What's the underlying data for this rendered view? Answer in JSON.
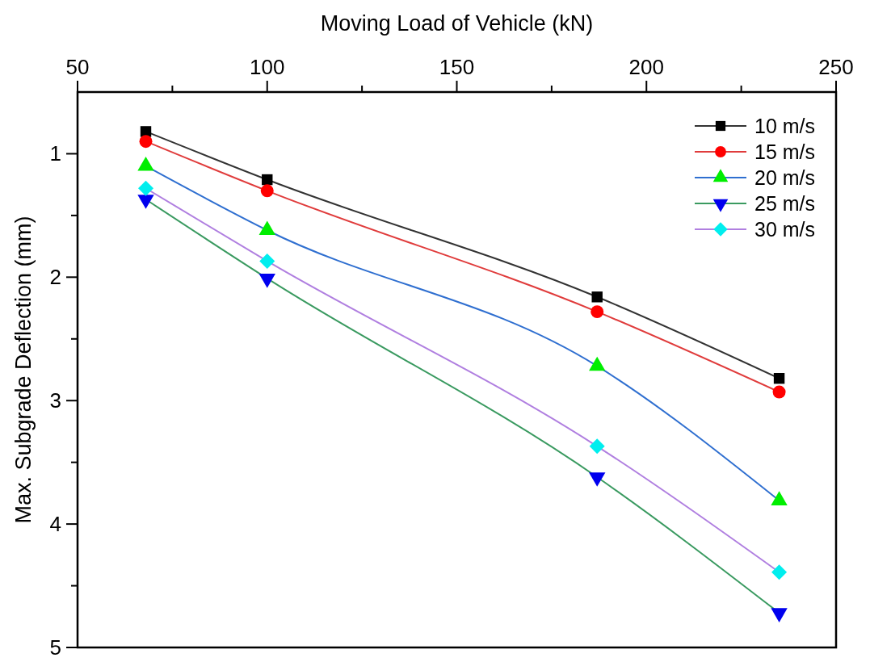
{
  "chart_data": {
    "type": "line",
    "xlabel": "Moving Load of Vehicle (kN)",
    "ylabel": "Max. Subgrade Deflection (mm)",
    "x": [
      68,
      100,
      187,
      235
    ],
    "xlim": [
      50,
      250
    ],
    "xticks": [
      50,
      {
        "value": 75,
        "label": null
      },
      100,
      {
        "value": 125,
        "label": null
      },
      150,
      {
        "value": 175,
        "label": null
      },
      200,
      {
        "value": 225,
        "label": null
      },
      250
    ],
    "ylim": [
      5,
      0.5
    ],
    "yticks": [
      1,
      {
        "value": 1.5,
        "label": null
      },
      2,
      {
        "value": 2.5,
        "label": null
      },
      3,
      {
        "value": 3.5,
        "label": null
      },
      4,
      {
        "value": 4.5,
        "label": null
      },
      5
    ],
    "grid": false,
    "legend": "top right",
    "series": [
      {
        "name": "10 m/s",
        "color": "#333333",
        "colors": [
          "#000000",
          "#000000",
          "#000000",
          "#000000"
        ],
        "marker": "square",
        "values": [
          0.82,
          1.21,
          2.16,
          2.82
        ]
      },
      {
        "name": "15 m/s",
        "color": "#e03c3c",
        "colors": [
          "#ff0000",
          "#ff0000",
          "#ff0000",
          "#ff0000"
        ],
        "marker": "circle",
        "values": [
          0.9,
          1.3,
          2.28,
          2.93
        ]
      },
      {
        "name": "20 m/s",
        "color": "#2f6fd0",
        "colors": [
          "#00ee00",
          "#00ee00",
          "#00ee00",
          "#00ee00"
        ],
        "marker": "triangle",
        "values": [
          1.1,
          1.62,
          2.72,
          3.81
        ]
      },
      {
        "name": "25 m/s",
        "color": "#3a9a60",
        "colors": [
          "#0000ee",
          "#0000ee",
          "#0000ee",
          "#0000ee"
        ],
        "marker": "triangle-down",
        "values": [
          1.37,
          2.01,
          3.62,
          4.72
        ]
      },
      {
        "name": "30 m/s",
        "color": "#b07fe0",
        "colors": [
          "#00eeee",
          "#00eeee",
          "#00eeee",
          "#00eeee"
        ],
        "marker": "diamond",
        "values": [
          1.28,
          1.87,
          3.37,
          4.39
        ]
      }
    ]
  }
}
